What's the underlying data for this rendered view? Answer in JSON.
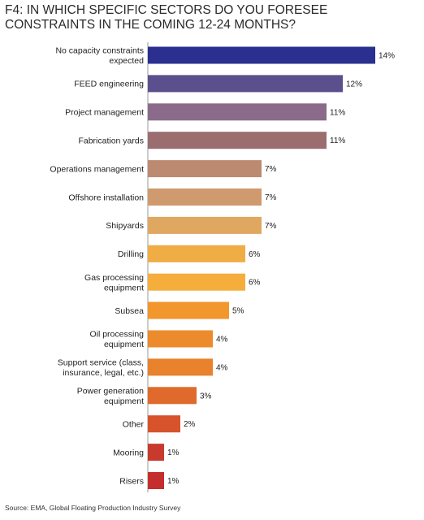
{
  "title": "F4:  IN WHICH SPECIFIC SECTORS DO YOU FORESEE CONSTRAINTS IN THE COMING 12-24 MONTHS?",
  "source": "Source: EMA, Global Floating Production Industry Survey",
  "chart_data": {
    "type": "bar",
    "orientation": "horizontal",
    "categories": [
      "No capacity constraints expected",
      "FEED engineering",
      "Project management",
      "Fabrication yards",
      "Operations management",
      "Offshore installation",
      "Shipyards",
      "Drilling",
      "Gas processing equipment",
      "Subsea",
      "Oil processing equipment",
      "Support service (class, insurance, legal, etc.)",
      "Power generation equipment",
      "Other",
      "Mooring",
      "Risers"
    ],
    "label_lines": [
      [
        "No capacity constraints",
        "expected"
      ],
      [
        "FEED engineering"
      ],
      [
        "Project management"
      ],
      [
        "Fabrication yards"
      ],
      [
        "Operations management"
      ],
      [
        "Offshore installation"
      ],
      [
        "Shipyards"
      ],
      [
        "Drilling"
      ],
      [
        "Gas processing",
        "equipment"
      ],
      [
        "Subsea"
      ],
      [
        "Oil processing",
        "equipment"
      ],
      [
        "Support service (class,",
        "insurance, legal, etc.)"
      ],
      [
        "Power generation",
        "equipment"
      ],
      [
        "Other"
      ],
      [
        "Mooring"
      ],
      [
        "Risers"
      ]
    ],
    "values": [
      14,
      12,
      11,
      11,
      7,
      7,
      7,
      6,
      6,
      5,
      4,
      4,
      3,
      2,
      1,
      1
    ],
    "value_labels": [
      "14%",
      "12%",
      "11%",
      "11%",
      "7%",
      "7%",
      "7%",
      "6%",
      "6%",
      "5%",
      "4%",
      "4%",
      "3%",
      "2%",
      "1%",
      "1%"
    ],
    "colors": [
      "#2b2f8f",
      "#5b4f8e",
      "#8a6b8a",
      "#9b6d6f",
      "#bb8a70",
      "#cf9a6e",
      "#e0a760",
      "#f0ad46",
      "#f5ae3c",
      "#f2972c",
      "#ec8b2c",
      "#e8822c",
      "#e0692c",
      "#d6532c",
      "#c93a2e",
      "#c42f2e"
    ],
    "xlim": [
      0,
      14
    ],
    "unit": "%",
    "grid": false,
    "legend": "none"
  }
}
